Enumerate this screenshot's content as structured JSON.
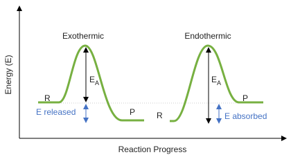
{
  "axes": {
    "y_label": "Energy (E)",
    "x_label": "Reaction Progress"
  },
  "exothermic": {
    "title": "Exothermic",
    "activation": {
      "symbol": "E",
      "subscript": "A"
    },
    "reactant": "R",
    "product": "P",
    "energy_change": "E released"
  },
  "endothermic": {
    "title": "Endothermic",
    "activation": {
      "symbol": "E",
      "subscript": "A"
    },
    "reactant": "R",
    "product": "P",
    "energy_change": "E absorbed"
  }
}
